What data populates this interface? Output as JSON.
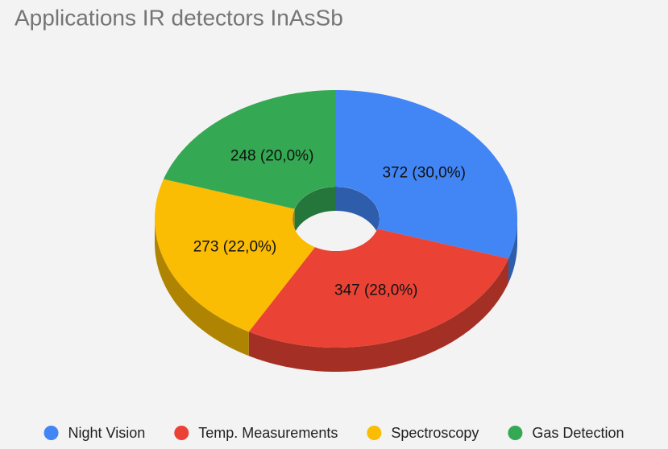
{
  "chart_data": {
    "type": "pie",
    "title": "Applications IR detectors InAsSb",
    "categories": [
      "Night Vision",
      "Temp. Measurements",
      "Spectroscopy",
      "Gas Detection"
    ],
    "values": [
      372,
      347,
      273,
      248
    ],
    "value_labels": [
      "372 (30,0%)",
      "347 (28,0%)",
      "273 (22,0%)",
      "248 (20,0%)"
    ],
    "colors": [
      "#4285f4",
      "#ea4335",
      "#fbbc04",
      "#34a853"
    ],
    "legend": "bottom"
  }
}
